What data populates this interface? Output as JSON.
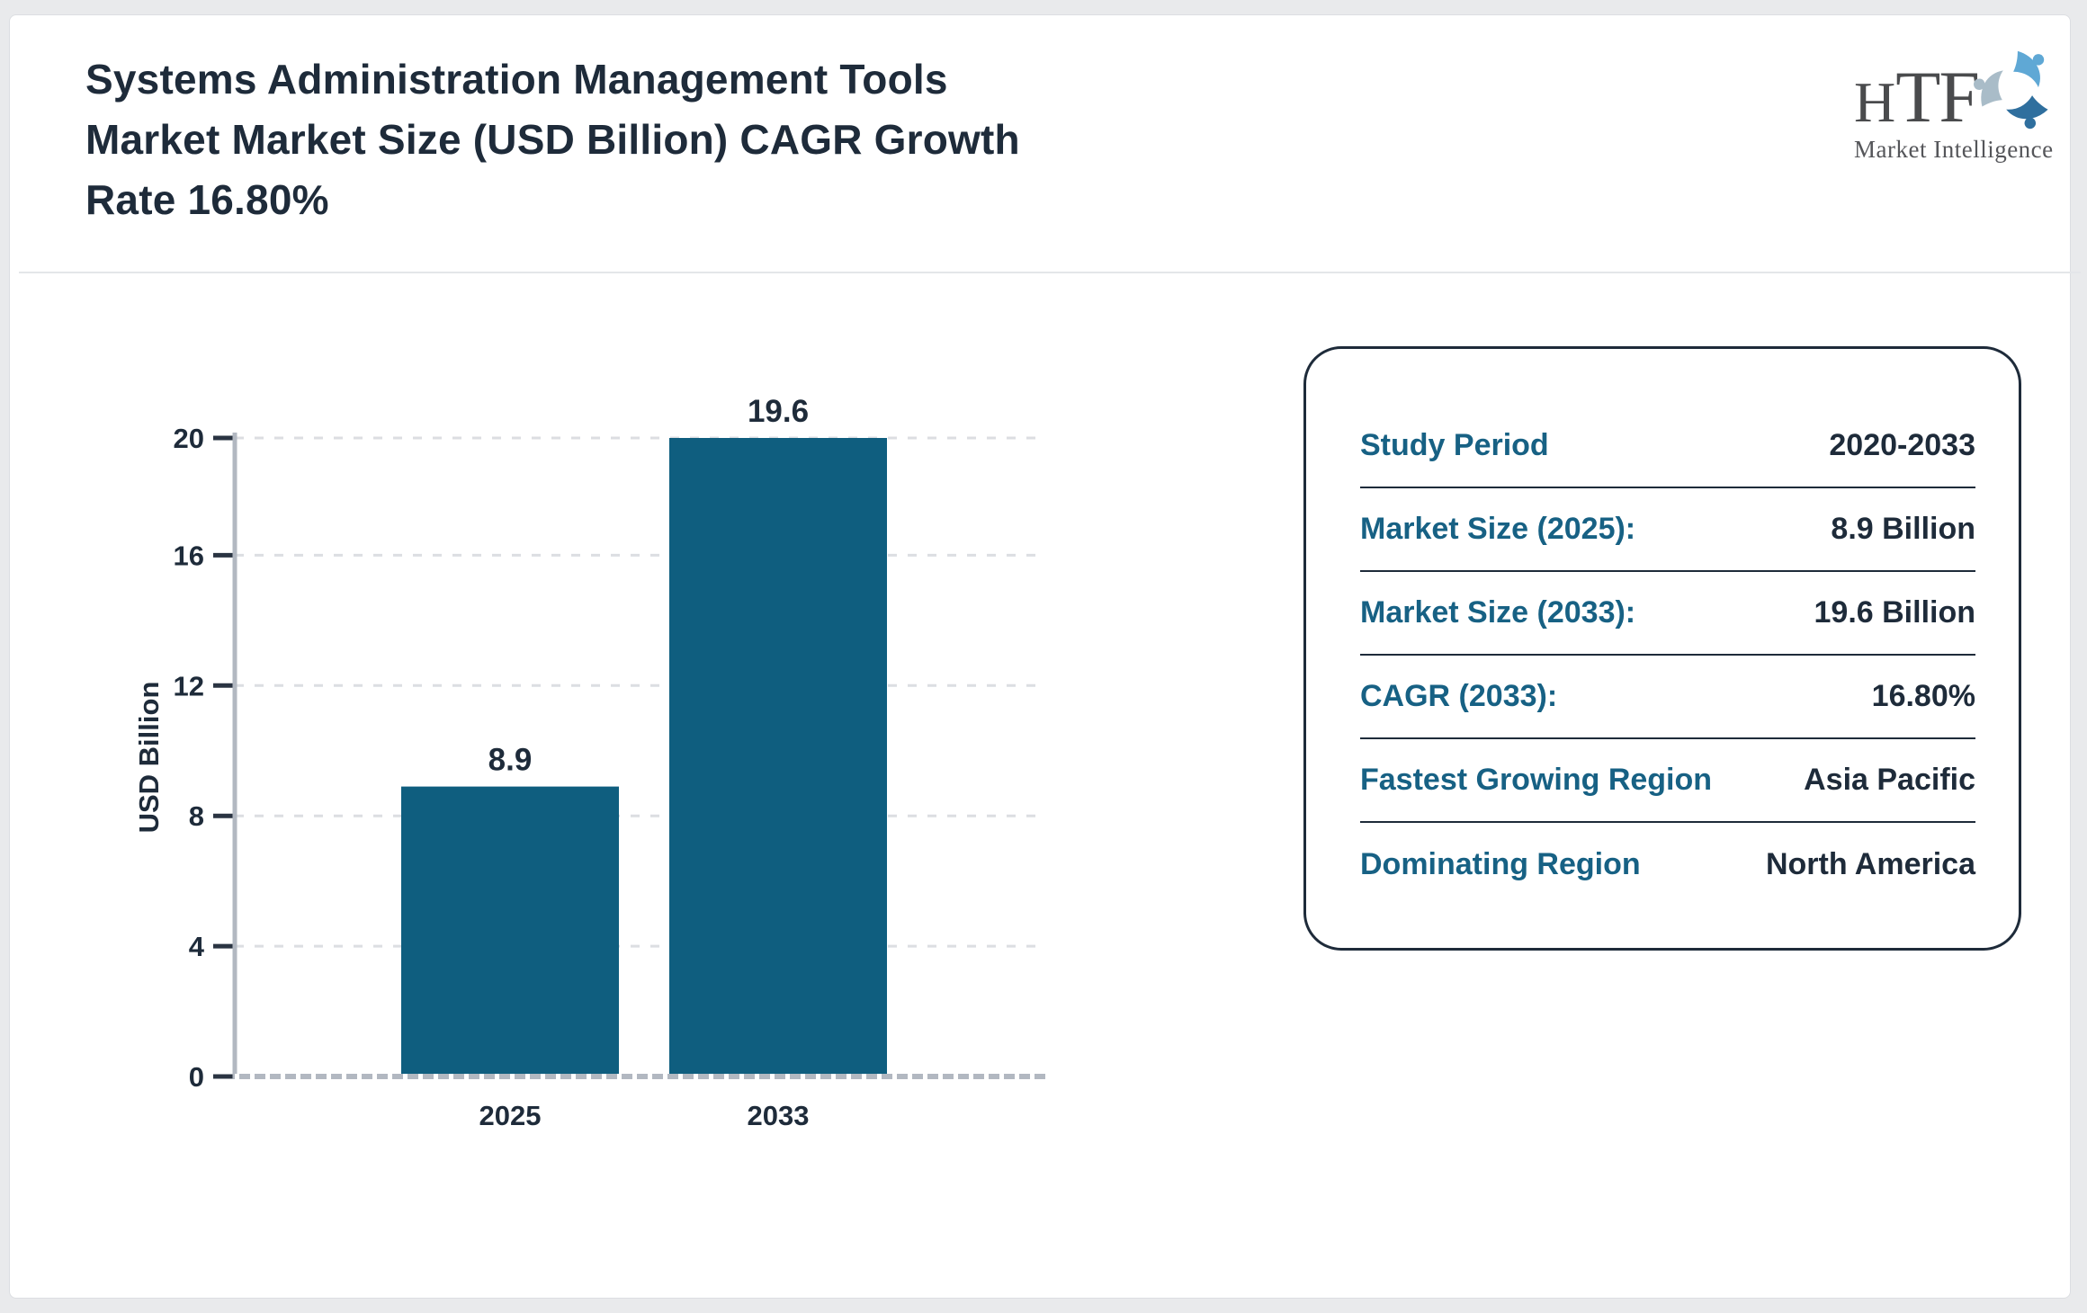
{
  "header": {
    "title_lines": [
      "Systems Administration Management Tools",
      "Market Market Size (USD Billion) CAGR Growth",
      "Rate 16.80%"
    ]
  },
  "logo": {
    "letters": [
      "H",
      "T",
      "F"
    ],
    "subtext": "Market Intelligence"
  },
  "chart_data": {
    "type": "bar",
    "title": "Systems Administration Management Tools Market Market Size (USD Billion)",
    "categories": [
      "2025",
      "2033"
    ],
    "values": [
      8.9,
      19.6
    ],
    "value_labels": [
      "8.9",
      "19.6"
    ],
    "xlabel": "",
    "ylabel": "USD Billion",
    "ylim": [
      0,
      19.6
    ],
    "yticks": [
      0,
      4,
      8,
      12,
      16,
      20
    ],
    "grid": true,
    "legend": "none",
    "bar_color": "#0f5e7f"
  },
  "panel": {
    "rows": [
      {
        "label": "Study Period",
        "value": "2020-2033"
      },
      {
        "label": "Market Size (2025):",
        "value": "8.9 Billion"
      },
      {
        "label": "Market Size (2033):",
        "value": "19.6 Billion"
      },
      {
        "label": "CAGR (2033):",
        "value": "16.80%"
      },
      {
        "label": "Fastest Growing Region",
        "value": "Asia Pacific"
      },
      {
        "label": "Dominating Region",
        "value": "North America"
      }
    ]
  },
  "colors": {
    "bar": "#0f5e7f",
    "title_text": "#1e2b3a",
    "panel_label": "#176184",
    "panel_border": "#1e2b3a",
    "axis_line": "#b2b8c1",
    "gridline": "#dcdee2",
    "logo_light_blue": "#5fa8d5",
    "logo_gray": "#a9bcc8",
    "logo_dark_blue": "#2f6f9e"
  }
}
